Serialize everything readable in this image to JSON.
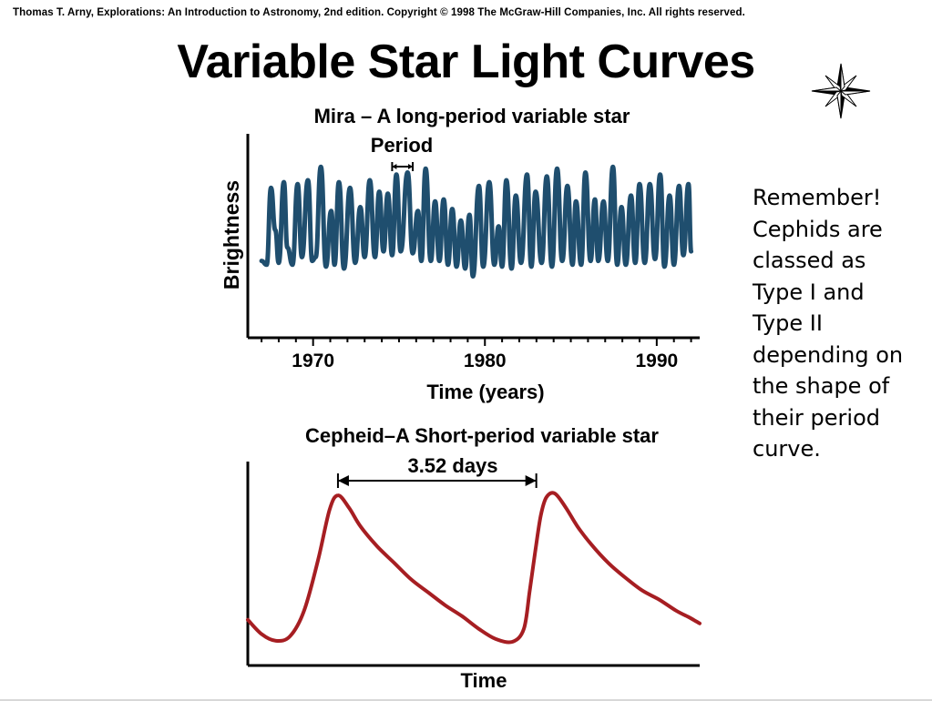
{
  "header": {
    "credit": "Thomas T. Arny, Explorations: An Introduction to Astronomy, 2nd edition. Copyright © 1998 The McGraw-Hill Companies, Inc. All rights reserved.",
    "title": "Variable Star Light Curves"
  },
  "icons": {
    "decoration": "compass-star-icon"
  },
  "note": {
    "lines": [
      "Remember!",
      "Cephids are",
      "classed as",
      "Type I and",
      "Type II",
      "depending on",
      "the shape of",
      "their period",
      "curve."
    ]
  },
  "chart_data": [
    {
      "type": "line",
      "title": "Mira – A long-period variable star",
      "xlabel": "Time (years)",
      "ylabel": "Brightness",
      "xlim": [
        1966.2,
        1992.5
      ],
      "ylim": [
        0,
        1
      ],
      "ticks": [
        1970,
        1980,
        1990
      ],
      "tick_labels": [
        "1970",
        "1980",
        "1990"
      ],
      "annotation": "Period",
      "period_marker": [
        1974.6,
        1975.8
      ],
      "color": "#1f4e6e",
      "series": [
        {
          "values": [
            [
              1967.0,
              0.4
            ],
            [
              1967.3,
              0.38
            ],
            [
              1967.55,
              0.78
            ],
            [
              1967.8,
              0.56
            ],
            [
              1968.0,
              0.39
            ],
            [
              1968.3,
              0.81
            ],
            [
              1968.5,
              0.47
            ],
            [
              1968.8,
              0.38
            ],
            [
              1969.1,
              0.8
            ],
            [
              1969.35,
              0.42
            ],
            [
              1969.7,
              0.82
            ],
            [
              1969.95,
              0.4
            ],
            [
              1970.15,
              0.42
            ],
            [
              1970.45,
              0.89
            ],
            [
              1970.75,
              0.37
            ],
            [
              1971.05,
              0.66
            ],
            [
              1971.25,
              0.38
            ],
            [
              1971.5,
              0.81
            ],
            [
              1971.8,
              0.36
            ],
            [
              1972.15,
              0.78
            ],
            [
              1972.45,
              0.39
            ],
            [
              1972.75,
              0.68
            ],
            [
              1973.0,
              0.42
            ],
            [
              1973.3,
              0.82
            ],
            [
              1973.6,
              0.42
            ],
            [
              1973.85,
              0.76
            ],
            [
              1974.1,
              0.45
            ],
            [
              1974.35,
              0.75
            ],
            [
              1974.6,
              0.43
            ],
            [
              1974.85,
              0.85
            ],
            [
              1975.1,
              0.45
            ],
            [
              1975.5,
              0.86
            ],
            [
              1975.8,
              0.44
            ],
            [
              1976.1,
              0.66
            ],
            [
              1976.3,
              0.4
            ],
            [
              1976.55,
              0.88
            ],
            [
              1976.85,
              0.4
            ],
            [
              1977.1,
              0.71
            ],
            [
              1977.35,
              0.4
            ],
            [
              1977.6,
              0.72
            ],
            [
              1977.85,
              0.38
            ],
            [
              1978.1,
              0.67
            ],
            [
              1978.35,
              0.37
            ],
            [
              1978.6,
              0.61
            ],
            [
              1978.85,
              0.36
            ],
            [
              1979.1,
              0.64
            ],
            [
              1979.3,
              0.32
            ],
            [
              1979.65,
              0.79
            ],
            [
              1979.9,
              0.37
            ],
            [
              1980.25,
              0.81
            ],
            [
              1980.55,
              0.38
            ],
            [
              1980.8,
              0.58
            ],
            [
              1981.0,
              0.37
            ],
            [
              1981.25,
              0.82
            ],
            [
              1981.55,
              0.36
            ],
            [
              1981.8,
              0.74
            ],
            [
              1982.1,
              0.39
            ],
            [
              1982.45,
              0.85
            ],
            [
              1982.7,
              0.37
            ],
            [
              1982.95,
              0.76
            ],
            [
              1983.3,
              0.39
            ],
            [
              1983.6,
              0.84
            ],
            [
              1983.9,
              0.37
            ],
            [
              1984.2,
              0.88
            ],
            [
              1984.5,
              0.4
            ],
            [
              1984.8,
              0.79
            ],
            [
              1985.1,
              0.38
            ],
            [
              1985.3,
              0.71
            ],
            [
              1985.6,
              0.38
            ],
            [
              1985.85,
              0.86
            ],
            [
              1986.15,
              0.4
            ],
            [
              1986.4,
              0.72
            ],
            [
              1986.6,
              0.4
            ],
            [
              1986.9,
              0.71
            ],
            [
              1987.15,
              0.4
            ],
            [
              1987.45,
              0.89
            ],
            [
              1987.7,
              0.38
            ],
            [
              1987.95,
              0.68
            ],
            [
              1988.2,
              0.38
            ],
            [
              1988.5,
              0.74
            ],
            [
              1988.75,
              0.39
            ],
            [
              1989.0,
              0.8
            ],
            [
              1989.3,
              0.39
            ],
            [
              1989.6,
              0.8
            ],
            [
              1989.9,
              0.41
            ],
            [
              1990.2,
              0.85
            ],
            [
              1990.45,
              0.37
            ],
            [
              1990.75,
              0.74
            ],
            [
              1991.0,
              0.38
            ],
            [
              1991.3,
              0.79
            ],
            [
              1991.55,
              0.43
            ],
            [
              1991.85,
              0.8
            ],
            [
              1992.0,
              0.45
            ]
          ]
        }
      ]
    },
    {
      "type": "line",
      "title": "Cepheid–A Short-period variable star",
      "xlabel": "Time",
      "xlim": [
        0,
        8.02
      ],
      "ylim": [
        0,
        1
      ],
      "annotation": "3.52 days",
      "period_marker": [
        1.6,
        5.12
      ],
      "color": "#a61e22",
      "series": [
        {
          "values": [
            [
              0.0,
              0.25
            ],
            [
              0.25,
              0.17
            ],
            [
              0.5,
              0.135
            ],
            [
              0.75,
              0.16
            ],
            [
              1.0,
              0.3
            ],
            [
              1.25,
              0.58
            ],
            [
              1.45,
              0.85
            ],
            [
              1.6,
              0.93
            ],
            [
              1.8,
              0.86
            ],
            [
              2.0,
              0.76
            ],
            [
              2.3,
              0.65
            ],
            [
              2.6,
              0.56
            ],
            [
              2.9,
              0.47
            ],
            [
              3.2,
              0.4
            ],
            [
              3.5,
              0.33
            ],
            [
              3.8,
              0.27
            ],
            [
              4.1,
              0.2
            ],
            [
              4.4,
              0.145
            ],
            [
              4.7,
              0.13
            ],
            [
              4.9,
              0.2
            ],
            [
              5.0,
              0.4
            ],
            [
              5.1,
              0.62
            ],
            [
              5.2,
              0.82
            ],
            [
              5.3,
              0.92
            ],
            [
              5.45,
              0.94
            ],
            [
              5.65,
              0.86
            ],
            [
              5.85,
              0.76
            ],
            [
              6.1,
              0.66
            ],
            [
              6.4,
              0.56
            ],
            [
              6.7,
              0.48
            ],
            [
              7.0,
              0.41
            ],
            [
              7.3,
              0.36
            ],
            [
              7.6,
              0.3
            ],
            [
              7.85,
              0.26
            ],
            [
              8.02,
              0.23
            ]
          ]
        }
      ]
    }
  ]
}
